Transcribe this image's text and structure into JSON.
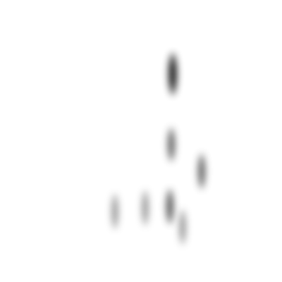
{
  "image": {
    "background_color": "#ffffff",
    "spots": [
      {
        "name": "spot-top",
        "color": "#111111",
        "opacity": 0.95
      },
      {
        "name": "spot-middle",
        "color": "#333333",
        "opacity": 0.75
      },
      {
        "name": "spot-right",
        "color": "#333333",
        "opacity": 0.75
      },
      {
        "name": "spot-lower-left",
        "color": "#555555",
        "opacity": 0.6
      },
      {
        "name": "spot-lower-center-left",
        "color": "#555555",
        "opacity": 0.6
      },
      {
        "name": "spot-lower-center",
        "color": "#333333",
        "opacity": 0.8
      },
      {
        "name": "spot-lower-right",
        "color": "#555555",
        "opacity": 0.6
      }
    ]
  }
}
